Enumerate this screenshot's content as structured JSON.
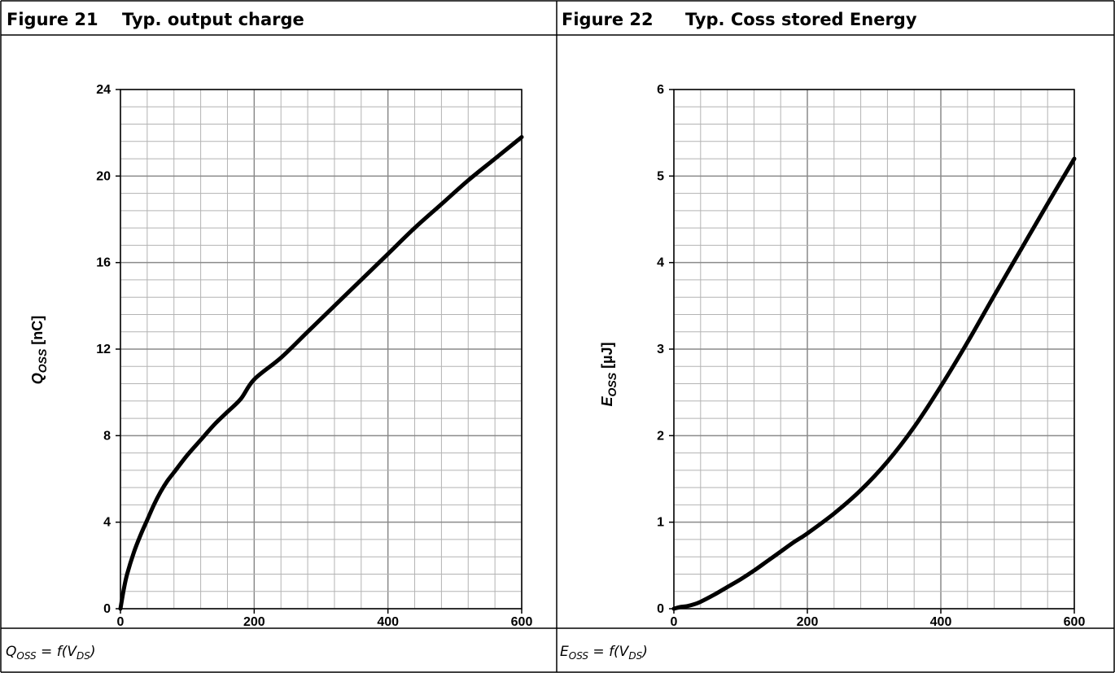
{
  "figures": [
    {
      "number": "Figure 21",
      "title": "Typ. output charge",
      "caption": {
        "var": "Q",
        "var_sub": "OSS",
        "mid": " = f(V",
        "mid_sub": "DS",
        "end": ")"
      }
    },
    {
      "number": "Figure 22",
      "title": "Typ. Coss stored Energy",
      "caption": {
        "var": "E",
        "var_sub": "OSS",
        "mid": " = f(V",
        "mid_sub": "DS",
        "end": ")"
      }
    }
  ],
  "chart_data": [
    {
      "type": "line",
      "title": "Typ. output charge",
      "ylabel": {
        "symbol": "Q",
        "sub": "OSS",
        "unit": " [nC]"
      },
      "xlabel": "",
      "xlim": [
        0,
        600
      ],
      "ylim": [
        0,
        24
      ],
      "xticks": [
        0,
        200,
        400,
        600
      ],
      "yticks": [
        0,
        4,
        8,
        12,
        16,
        20,
        24
      ],
      "xminor_step": 40,
      "yminor_step": 0.8,
      "grid": true,
      "series": [
        {
          "x": [
            0,
            5,
            10,
            20,
            30,
            40,
            50,
            60,
            70,
            80,
            100,
            120,
            140,
            160,
            180,
            200,
            240,
            280,
            320,
            360,
            400,
            440,
            480,
            520,
            560,
            600
          ],
          "y": [
            0,
            0.9,
            1.6,
            2.6,
            3.4,
            4.1,
            4.8,
            5.4,
            5.9,
            6.3,
            7.1,
            7.8,
            8.5,
            9.1,
            9.7,
            10.6,
            11.6,
            12.8,
            14.0,
            15.2,
            16.4,
            17.6,
            18.7,
            19.8,
            20.8,
            21.8
          ]
        }
      ]
    },
    {
      "type": "line",
      "title": "Typ. Coss stored Energy",
      "ylabel": {
        "symbol": "E",
        "sub": "OSS",
        "unit": " [µJ]"
      },
      "xlabel": "",
      "xlim": [
        0,
        600
      ],
      "ylim": [
        0,
        6
      ],
      "xticks": [
        0,
        200,
        400,
        600
      ],
      "yticks": [
        0,
        1,
        2,
        3,
        4,
        5,
        6
      ],
      "xminor_step": 40,
      "yminor_step": 0.2,
      "grid": true,
      "series": [
        {
          "x": [
            0,
            10,
            20,
            30,
            40,
            60,
            80,
            100,
            120,
            140,
            160,
            180,
            200,
            240,
            280,
            320,
            360,
            400,
            440,
            480,
            520,
            560,
            600
          ],
          "y": [
            0,
            0.02,
            0.03,
            0.05,
            0.08,
            0.16,
            0.25,
            0.34,
            0.44,
            0.55,
            0.66,
            0.77,
            0.87,
            1.1,
            1.37,
            1.7,
            2.1,
            2.57,
            3.08,
            3.62,
            4.15,
            4.68,
            5.2
          ]
        }
      ]
    }
  ]
}
